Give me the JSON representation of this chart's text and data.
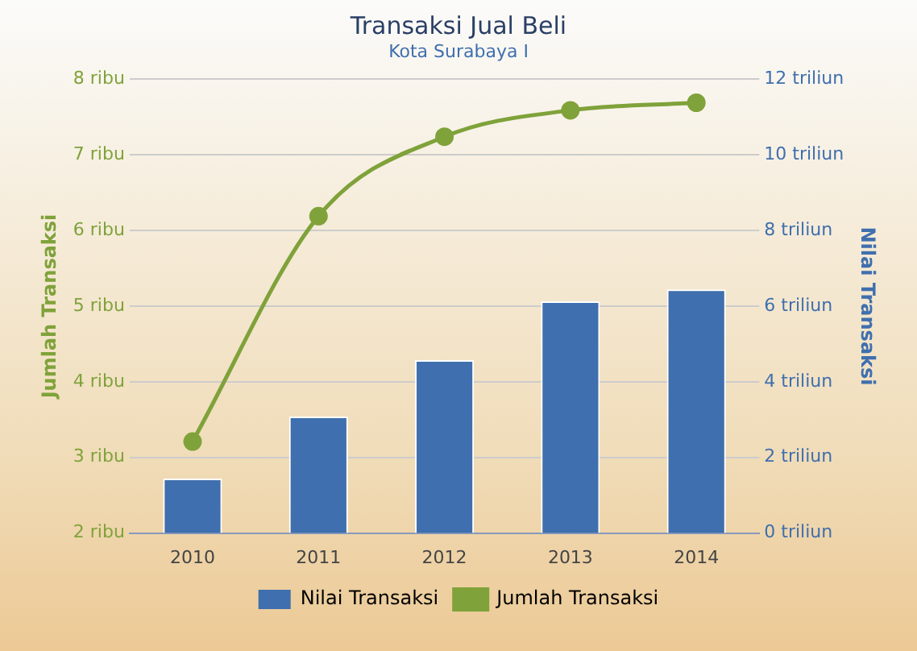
{
  "chart_data": {
    "type": "bar",
    "title": "Transaksi Jual Beli",
    "subtitle": "Kota Surabaya I",
    "ylabel": "Jumlah Transaksi",
    "y2label": "Nilai Transaksi",
    "categories": [
      "2010",
      "2011",
      "2012",
      "2013",
      "2014"
    ],
    "series": [
      {
        "name": "Nilai Transaksi",
        "axis": "y2",
        "color": "#3f6fae",
        "values": [
          1.44,
          3.08,
          4.57,
          6.13,
          6.44
        ]
      },
      {
        "name": "Jumlah Transaksi",
        "type": "line",
        "axis": "y",
        "color": "#7fa23a",
        "values": [
          3.21,
          6.19,
          7.24,
          7.59,
          7.69
        ]
      }
    ],
    "ylim": [
      2,
      8
    ],
    "yticks": [
      {
        "value": 2,
        "label": "2 ribu"
      },
      {
        "value": 3,
        "label": "3 ribu"
      },
      {
        "value": 4,
        "label": "4 ribu"
      },
      {
        "value": 5,
        "label": "5 ribu"
      },
      {
        "value": 6,
        "label": "6 ribu"
      },
      {
        "value": 7,
        "label": "7 ribu"
      },
      {
        "value": 8,
        "label": "8 ribu"
      }
    ],
    "y2lim": [
      0,
      12
    ],
    "y2ticks": [
      {
        "value": 0,
        "label": "0 triliun"
      },
      {
        "value": 2,
        "label": "2 triliun"
      },
      {
        "value": 4,
        "label": "4 triliun"
      },
      {
        "value": 6,
        "label": "6 triliun"
      },
      {
        "value": 8,
        "label": "8 triliun"
      },
      {
        "value": 10,
        "label": "10 triliun"
      },
      {
        "value": 12,
        "label": "12 triliun"
      }
    ],
    "grid": "y",
    "legend": "bottom",
    "marker": "circle",
    "line_style": "solid"
  }
}
